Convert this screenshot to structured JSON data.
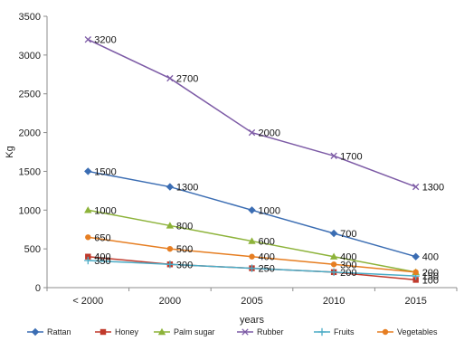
{
  "chart_data": {
    "type": "line",
    "xlabel": "years",
    "ylabel": "Kg",
    "categories": [
      "< 2000",
      "2000",
      "2005",
      "2010",
      "2015"
    ],
    "ylim": [
      0,
      3500
    ],
    "yticks": [
      0,
      500,
      1000,
      1500,
      2000,
      2500,
      3000,
      3500
    ],
    "grid": false,
    "legend_position": "bottom",
    "series": [
      {
        "name": "Rattan",
        "values": [
          1500,
          1300,
          1000,
          700,
          400
        ],
        "color": "#3b6db3",
        "marker": "diamond",
        "labels": [
          "1500",
          "1300",
          "1000",
          "700",
          "400"
        ]
      },
      {
        "name": "Honey",
        "values": [
          400,
          300,
          250,
          200,
          100
        ],
        "color": "#c0392b",
        "marker": "square",
        "labels": [
          "400",
          "",
          "",
          "",
          "100"
        ]
      },
      {
        "name": "Palm sugar",
        "values": [
          1000,
          800,
          600,
          400,
          200
        ],
        "color": "#8db33a",
        "marker": "triangle",
        "labels": [
          "1000",
          "800",
          "600",
          "400",
          "200"
        ]
      },
      {
        "name": "Rubber",
        "values": [
          3200,
          2700,
          2000,
          1700,
          1300
        ],
        "color": "#7d5ba6",
        "marker": "x",
        "labels": [
          "3200",
          "2700",
          "2000",
          "1700",
          "1300"
        ]
      },
      {
        "name": "Fruits",
        "values": [
          350,
          300,
          250,
          200,
          150
        ],
        "color": "#4bacc6",
        "marker": "cross",
        "labels": [
          "350",
          "300",
          "250",
          "200",
          "150"
        ]
      },
      {
        "name": "Vegetables",
        "values": [
          650,
          500,
          400,
          300,
          200
        ],
        "color": "#e67e22",
        "marker": "circle",
        "labels": [
          "650",
          "500",
          "400",
          "300",
          ""
        ]
      }
    ]
  }
}
